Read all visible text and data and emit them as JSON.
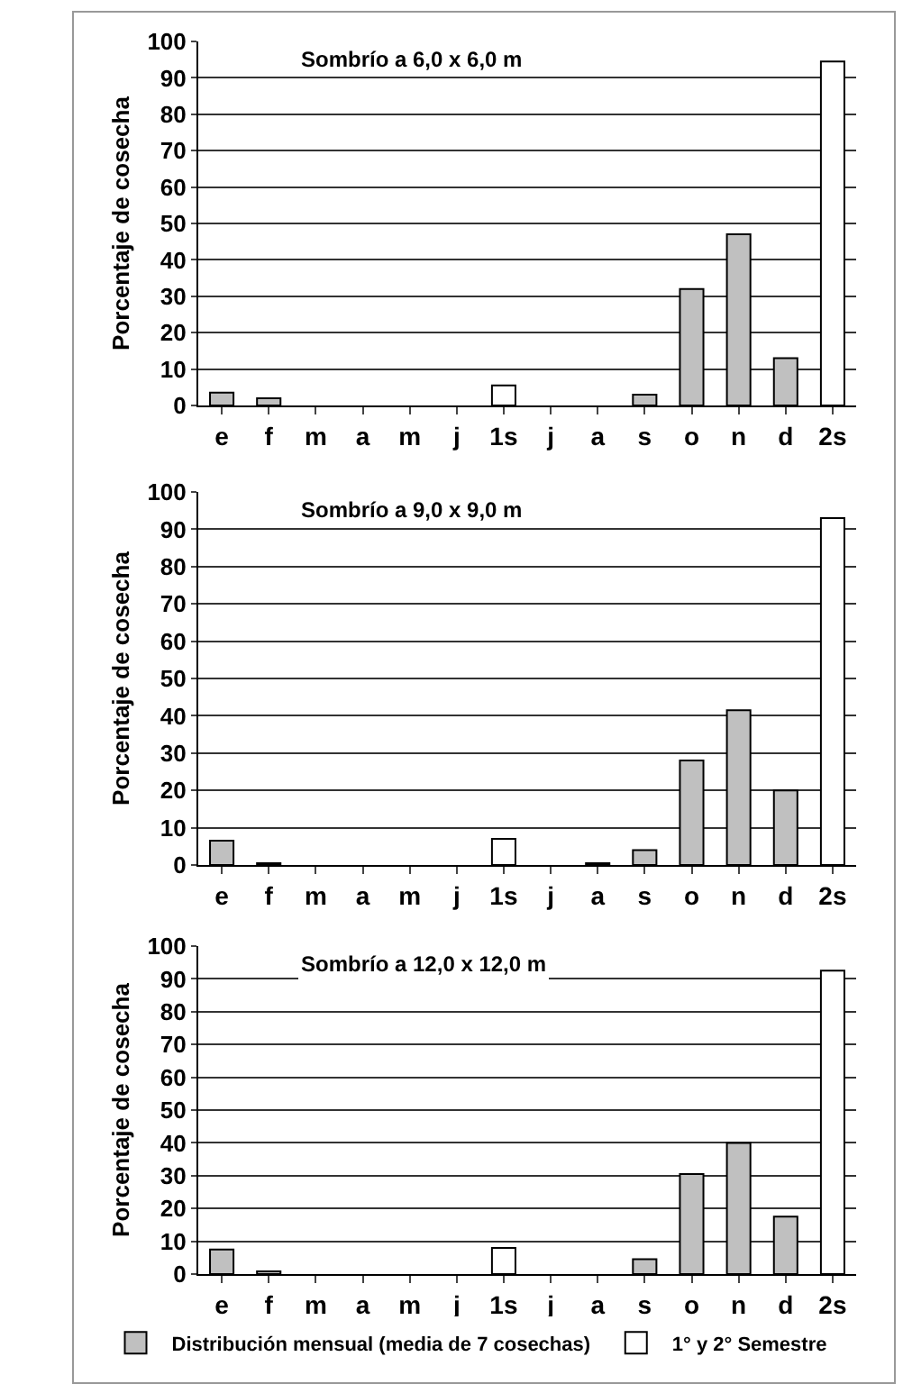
{
  "chart_data": [
    {
      "type": "bar",
      "title": "Sombrío a 6,0 x 6,0 m",
      "ylabel": "Porcentaje de cosecha",
      "categories": [
        "e",
        "f",
        "m",
        "a",
        "m",
        "j",
        "1s",
        "j",
        "a",
        "s",
        "o",
        "n",
        "d",
        "2s"
      ],
      "ylim": [
        0,
        100
      ],
      "yticks": [
        0,
        10,
        20,
        30,
        40,
        50,
        60,
        70,
        80,
        90,
        100
      ],
      "grid": "y",
      "legend": false,
      "series": [
        {
          "color": "#c0c0c0",
          "values": [
            3.5,
            2,
            0,
            0,
            0,
            0,
            null,
            0,
            0,
            3,
            32,
            47,
            13,
            null
          ]
        },
        {
          "color": "#ffffff",
          "values": [
            null,
            null,
            null,
            null,
            null,
            null,
            5.5,
            null,
            null,
            null,
            null,
            null,
            null,
            94.5
          ]
        }
      ]
    },
    {
      "type": "bar",
      "title": "Sombrío a 9,0 x 9,0 m",
      "ylabel": "Porcentaje de cosecha",
      "categories": [
        "e",
        "f",
        "m",
        "a",
        "m",
        "j",
        "1s",
        "j",
        "a",
        "s",
        "o",
        "n",
        "d",
        "2s"
      ],
      "ylim": [
        0,
        100
      ],
      "yticks": [
        0,
        10,
        20,
        30,
        40,
        50,
        60,
        70,
        80,
        90,
        100
      ],
      "grid": "y",
      "legend": false,
      "series": [
        {
          "color": "#c0c0c0",
          "values": [
            6.5,
            0.5,
            0,
            0,
            0,
            0,
            null,
            0,
            0.5,
            4,
            28,
            41.5,
            20,
            null
          ]
        },
        {
          "color": "#ffffff",
          "values": [
            null,
            null,
            null,
            null,
            null,
            null,
            7,
            null,
            null,
            null,
            null,
            null,
            null,
            93
          ]
        }
      ]
    },
    {
      "type": "bar",
      "title": "Sombrío a 12,0 x 12,0 m",
      "ylabel": "Porcentaje de cosecha",
      "categories": [
        "e",
        "f",
        "m",
        "a",
        "m",
        "j",
        "1s",
        "j",
        "a",
        "s",
        "o",
        "n",
        "d",
        "2s"
      ],
      "ylim": [
        0,
        100
      ],
      "yticks": [
        0,
        10,
        20,
        30,
        40,
        50,
        60,
        70,
        80,
        90,
        100
      ],
      "grid": "y",
      "legend": "bottom",
      "series": [
        {
          "name": "Distribución mensual (media de 7 cosechas)",
          "color": "#c0c0c0",
          "values": [
            7.5,
            0.8,
            0,
            0,
            0,
            0,
            null,
            0,
            0,
            4.5,
            30.5,
            40,
            17.5,
            null
          ]
        },
        {
          "name": "1° y 2° Semestre",
          "color": "#ffffff",
          "values": [
            null,
            null,
            null,
            null,
            null,
            null,
            8,
            null,
            null,
            null,
            null,
            null,
            null,
            92.5
          ]
        }
      ]
    }
  ]
}
